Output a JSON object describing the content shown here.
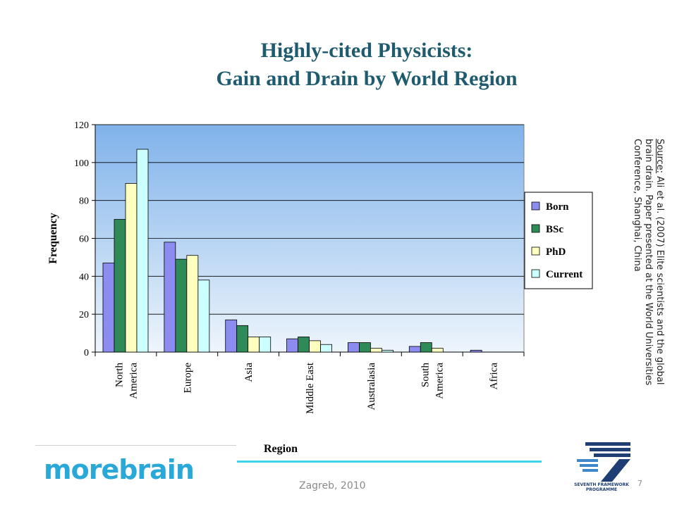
{
  "slide": {
    "title_line1": "Highly-cited Physicists:",
    "title_line2": "Gain and Drain by World Region",
    "source_label": "Source:",
    "source_text": " Ali et al. (2007) Elite scientists and the global brain drain. Paper presented at the World Universities Conference, Shanghai, China",
    "footer": "Zagreb, 2010",
    "page_number": "7",
    "logo_left_text": "morebrain",
    "logo_right_caption": "SEVENTH FRAMEWORK PROGRAMME",
    "colors": {
      "title": "#1f5b6e",
      "accent_line": "#3fd3ea",
      "logo_blue": "#2aa9d8",
      "logo_navy": "#1f3f74"
    }
  },
  "chart_data": {
    "type": "bar",
    "title": "",
    "xlabel": "Region",
    "ylabel": "Frequency",
    "ylim": [
      0,
      120
    ],
    "yticks": [
      0,
      20,
      40,
      60,
      80,
      100,
      120
    ],
    "grid": true,
    "legend_position": "right",
    "categories": [
      [
        "North",
        "America"
      ],
      [
        "Europe"
      ],
      [
        "Asia"
      ],
      [
        "Middle East"
      ],
      [
        "Australasia"
      ],
      [
        "South",
        "America"
      ],
      [
        "Africa"
      ]
    ],
    "series": [
      {
        "name": "Born",
        "color": "#8c8cf0",
        "values": [
          47,
          58,
          17,
          7,
          5,
          3,
          1
        ]
      },
      {
        "name": "BSc",
        "color": "#2e8b57",
        "values": [
          70,
          49,
          14,
          8,
          5,
          5,
          0
        ]
      },
      {
        "name": "PhD",
        "color": "#ffffc0",
        "values": [
          89,
          51,
          8,
          6,
          2,
          2,
          0
        ]
      },
      {
        "name": "Current",
        "color": "#ccffff",
        "values": [
          107,
          38,
          8,
          4,
          1,
          0,
          0
        ]
      }
    ]
  }
}
